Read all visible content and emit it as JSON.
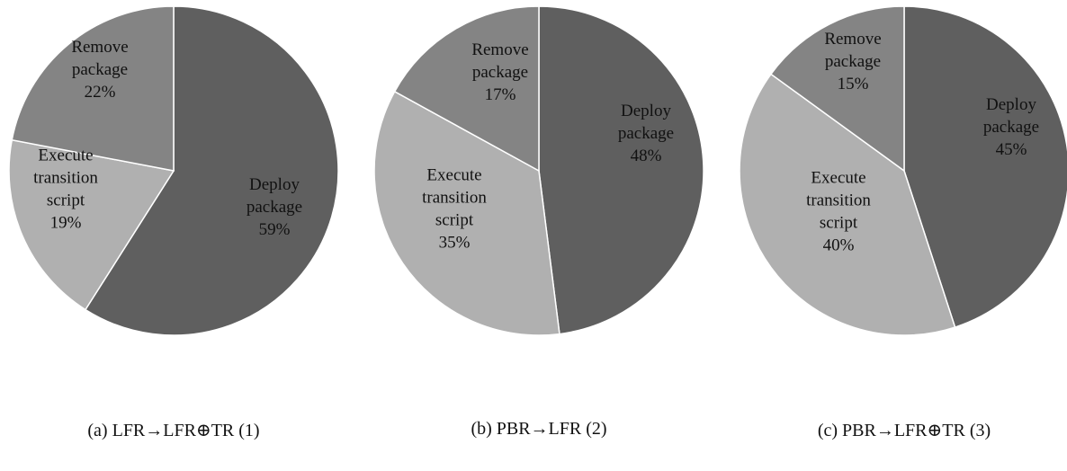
{
  "colors": {
    "Deploy package": "#5f5f5f",
    "Remove package": "#848484",
    "Execute transition script": "#b0b0b0"
  },
  "chart_data": [
    {
      "type": "pie",
      "caption": "(a) LFR→LFR⊕TR (1)",
      "slices": [
        {
          "label": "Deploy package",
          "value": 59,
          "label_lines": [
            "Deploy",
            "package",
            "59%"
          ]
        },
        {
          "label": "Execute transition script",
          "value": 19,
          "label_lines": [
            "Execute",
            "transition",
            "script",
            "19%"
          ]
        },
        {
          "label": "Remove package",
          "value": 22,
          "label_lines": [
            "Remove",
            "package",
            "22%"
          ]
        }
      ]
    },
    {
      "type": "pie",
      "caption": "(b) PBR→LFR (2)",
      "slices": [
        {
          "label": "Deploy package",
          "value": 48,
          "label_lines": [
            "Deploy",
            "package",
            "48%"
          ]
        },
        {
          "label": "Execute transition script",
          "value": 35,
          "label_lines": [
            "Execute",
            "transition",
            "script",
            "35%"
          ]
        },
        {
          "label": "Remove package",
          "value": 17,
          "label_lines": [
            "Remove",
            "package",
            "17%"
          ]
        }
      ]
    },
    {
      "type": "pie",
      "caption": "(c) PBR→LFR⊕TR (3)",
      "slices": [
        {
          "label": "Deploy package",
          "value": 45,
          "label_lines": [
            "Deploy",
            "package",
            "45%"
          ]
        },
        {
          "label": "Execute transition script",
          "value": 40,
          "label_lines": [
            "Execute",
            "transition",
            "script",
            "40%"
          ]
        },
        {
          "label": "Remove package",
          "value": 15,
          "label_lines": [
            "Remove",
            "package",
            "15%"
          ]
        }
      ]
    }
  ]
}
